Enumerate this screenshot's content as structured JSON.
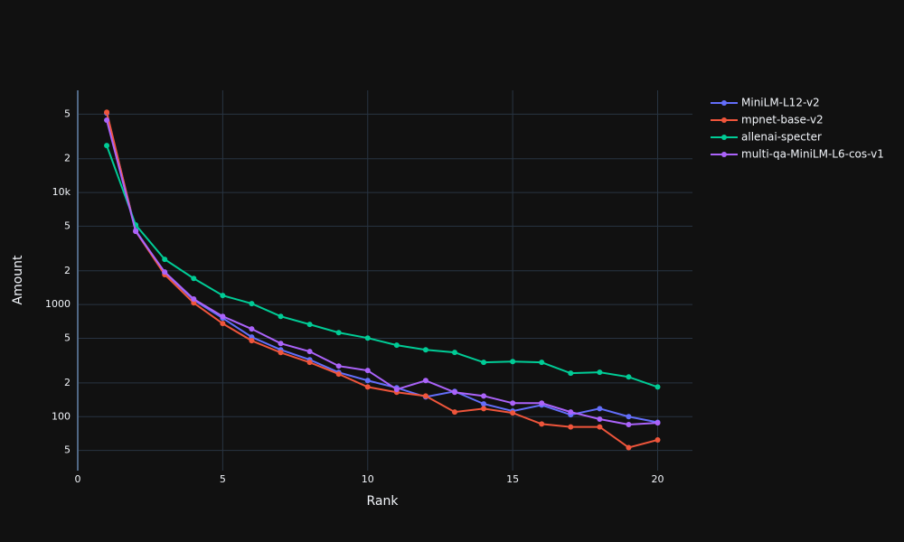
{
  "chart_data": {
    "type": "line",
    "x_label": "Rank",
    "y_label": "Amount",
    "x": [
      1,
      2,
      3,
      4,
      5,
      6,
      7,
      8,
      9,
      10,
      11,
      12,
      13,
      14,
      15,
      16,
      17,
      18,
      19,
      20
    ],
    "series": [
      {
        "name": "MiniLM-L12-v2",
        "color": "#636efa",
        "values": [
          51000,
          4580,
          1915,
          1100,
          757,
          513,
          395,
          322,
          248,
          210,
          181,
          150,
          168,
          130,
          112,
          127,
          104,
          118,
          100,
          89
        ]
      },
      {
        "name": "mpnet-base-v2",
        "color": "#ef553b",
        "values": [
          52000,
          4500,
          1850,
          1035,
          677,
          476,
          373,
          305,
          240,
          184,
          165,
          153,
          110,
          118,
          108,
          86,
          81,
          81,
          53,
          62
        ]
      },
      {
        "name": "allenai-specter",
        "color": "#00cc96",
        "values": [
          26200,
          5130,
          2530,
          1710,
          1205,
          1020,
          785,
          665,
          562,
          503,
          434,
          395,
          374,
          305,
          310,
          305,
          244,
          249,
          226,
          184
        ]
      },
      {
        "name": "multi-qa-MiniLM-L6-cos-v1",
        "color": "#ab63fa",
        "values": [
          44200,
          4500,
          1950,
          1120,
          785,
          606,
          450,
          381,
          283,
          258,
          175,
          210,
          165,
          153,
          132,
          132,
          110,
          95,
          85,
          88
        ]
      }
    ],
    "xlim": [
      0,
      21.2
    ],
    "xticks": [
      0,
      5,
      10,
      15,
      20
    ],
    "ylim": [
      33,
      81500
    ],
    "log_y": true,
    "yticks": [
      {
        "value": 50,
        "label": "5"
      },
      100,
      {
        "value": 200,
        "label": "2"
      },
      {
        "value": 500,
        "label": "5"
      },
      1000,
      {
        "value": 2000,
        "label": "2"
      },
      {
        "value": 5000,
        "label": "5"
      },
      {
        "value": 10000,
        "label": "10k"
      },
      {
        "value": 20000,
        "label": "2"
      },
      {
        "value": 50000,
        "label": "5"
      }
    ],
    "grid": true,
    "legend": "top-right"
  }
}
